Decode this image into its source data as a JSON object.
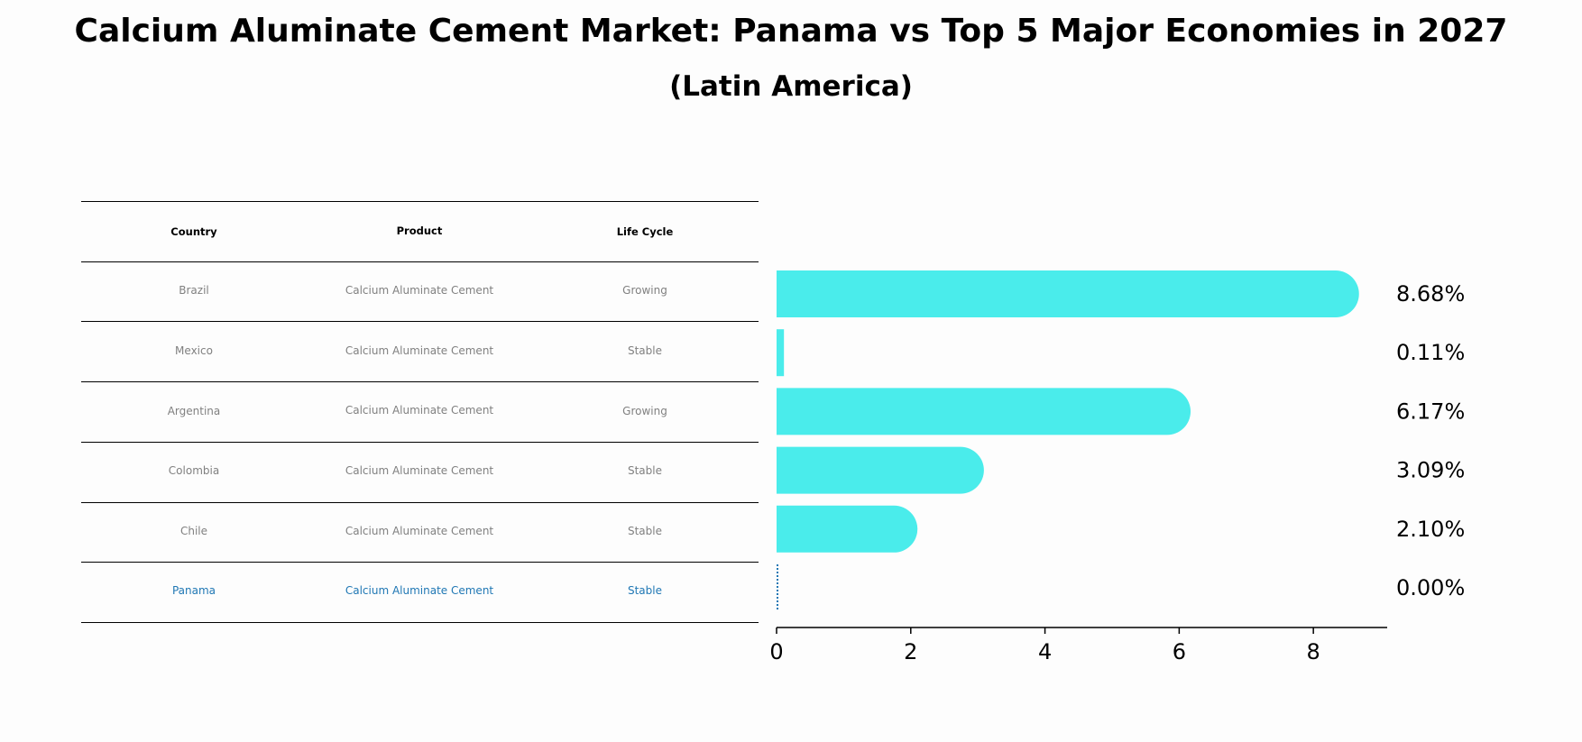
{
  "title": "Calcium Aluminate Cement Market: Panama vs Top 5 Major Economies in 2027",
  "subtitle": "(Latin America)",
  "table": {
    "headers": [
      "Country",
      "Product",
      "Life Cycle"
    ],
    "rows": [
      [
        "Brazil",
        "Calcium Aluminate Cement",
        "Growing"
      ],
      [
        "Mexico",
        "Calcium Aluminate Cement",
        "Stable"
      ],
      [
        "Argentina",
        "Calcium Aluminate Cement",
        "Growing"
      ],
      [
        "Colombia",
        "Calcium Aluminate Cement",
        "Stable"
      ],
      [
        "Chile",
        "Calcium Aluminate Cement",
        "Stable"
      ],
      [
        "Panama",
        "Calcium Aluminate Cement",
        "Stable"
      ]
    ],
    "highlight_row": "Panama",
    "highlight_color": "#1f77b4"
  },
  "chart_data": {
    "type": "bar",
    "orientation": "horizontal",
    "categories": [
      "Brazil",
      "Mexico",
      "Argentina",
      "Colombia",
      "Chile",
      "Panama"
    ],
    "values": [
      8.68,
      0.11,
      6.17,
      3.09,
      2.1,
      0.0
    ],
    "value_labels": [
      "8.68%",
      "0.11%",
      "6.17%",
      "3.09%",
      "2.10%",
      "0.00%"
    ],
    "xlim": [
      0,
      9.1
    ],
    "xticks": [
      0,
      2,
      4,
      6,
      8
    ],
    "bar_color": "#4aeceb",
    "highlight_color": "#1f77b4",
    "grid": false
  }
}
